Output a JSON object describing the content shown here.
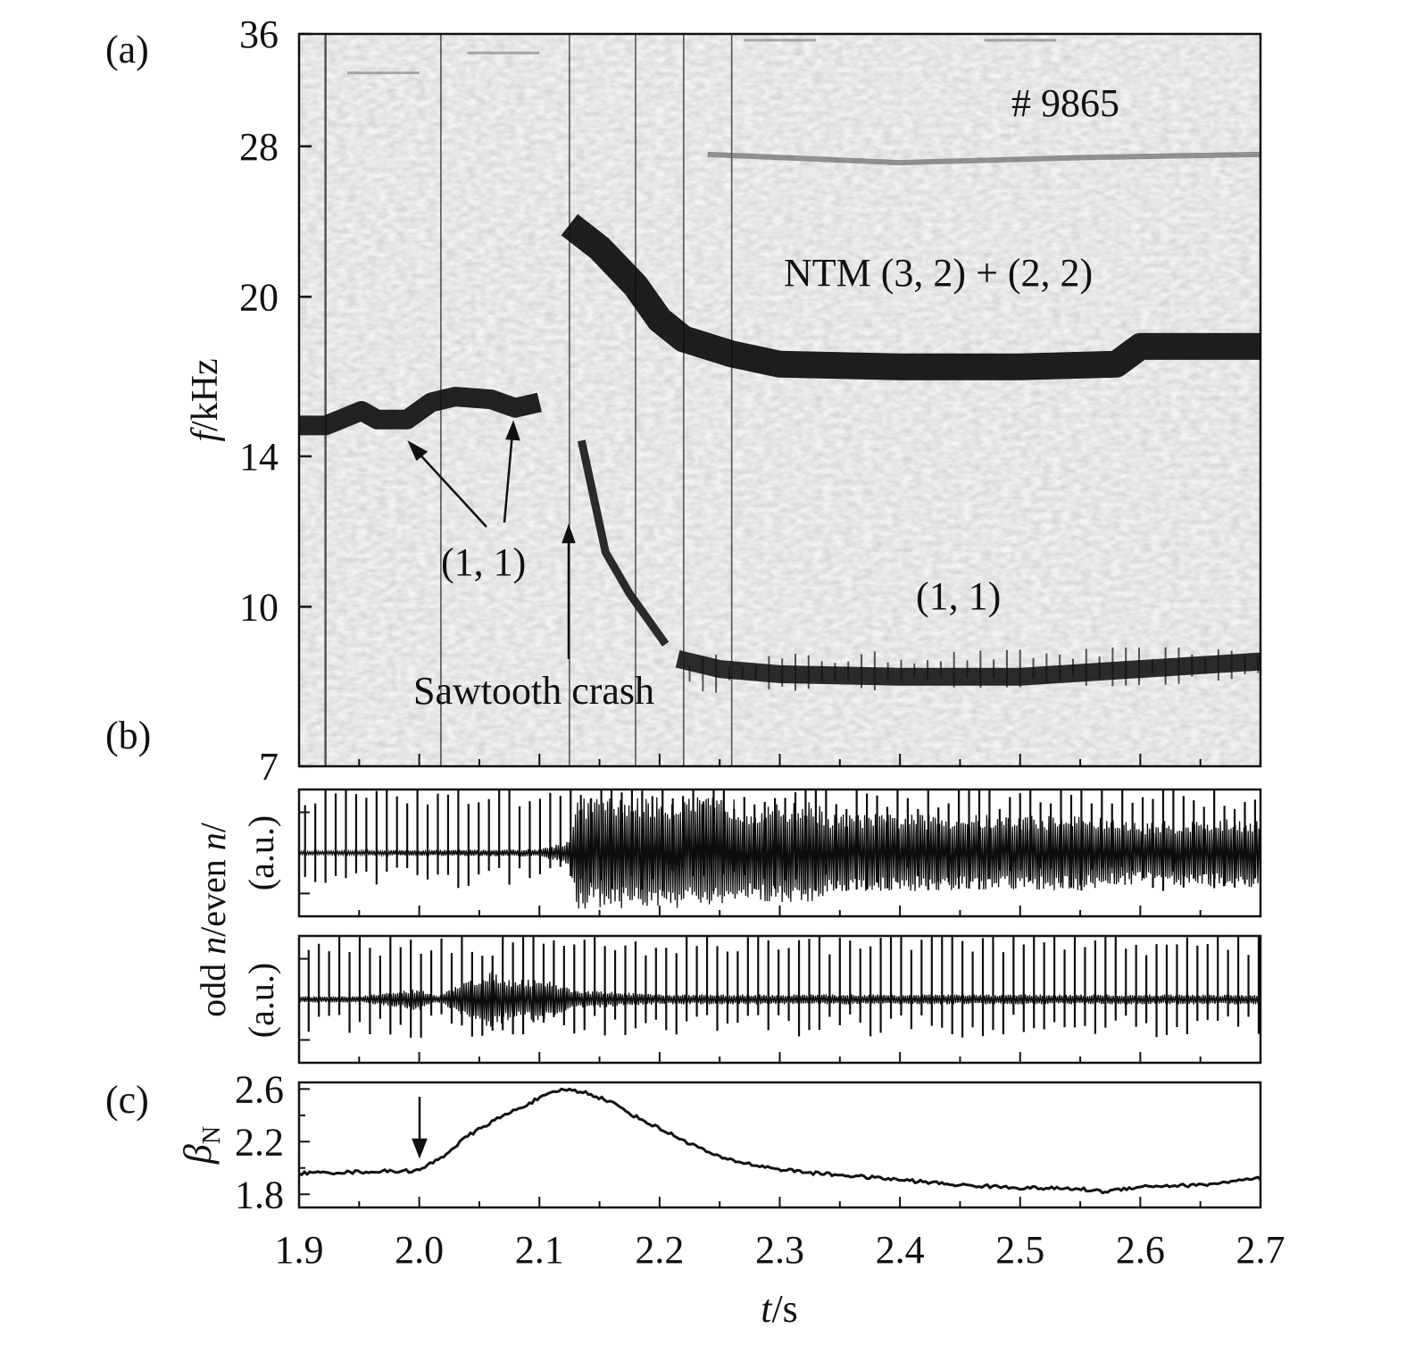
{
  "figure": {
    "panel_labels": [
      "(a)",
      "(b)",
      "(c)"
    ],
    "x_axis_label_italic": "t",
    "x_axis_label_unit": "/s",
    "x_ticks": [
      "1.9",
      "2.0",
      "2.1",
      "2.2",
      "2.3",
      "2.4",
      "2.5",
      "2.6",
      "2.7"
    ]
  },
  "chart_data": [
    {
      "type": "heatmap",
      "panel": "(a)",
      "ylabel_italic": "f",
      "ylabel_unit": "/kHz",
      "yscale": "log",
      "xlim": [
        1.9,
        2.7
      ],
      "ylim": [
        7,
        36
      ],
      "y_ticks": [
        "7",
        "10",
        "14",
        "20",
        "28",
        "36"
      ],
      "annotations": {
        "shot": "# 9865",
        "ntm": "NTM (3, 2) + (2, 2)",
        "mode_11_left": "(1, 1)",
        "mode_11_right": "(1, 1)",
        "sawtooth": "Sawtooth crash"
      },
      "mode_tracks": [
        {
          "name": "(1, 1) early",
          "points": [
            [
              1.9,
              15.0
            ],
            [
              1.922,
              15.0
            ],
            [
              1.952,
              15.5
            ],
            [
              1.965,
              15.2
            ],
            [
              1.99,
              15.2
            ],
            [
              2.01,
              15.8
            ],
            [
              2.03,
              16.0
            ],
            [
              2.06,
              15.9
            ],
            [
              2.08,
              15.6
            ],
            [
              2.1,
              15.8
            ]
          ]
        },
        {
          "name": "NTM (3, 2) + (2, 2)",
          "points": [
            [
              2.125,
              23.5
            ],
            [
              2.15,
              22.3
            ],
            [
              2.18,
              20.5
            ],
            [
              2.2,
              19.0
            ],
            [
              2.22,
              18.2
            ],
            [
              2.26,
              17.6
            ],
            [
              2.3,
              17.2
            ],
            [
              2.4,
              17.1
            ],
            [
              2.5,
              17.1
            ],
            [
              2.58,
              17.2
            ],
            [
              2.6,
              17.9
            ],
            [
              2.7,
              17.9
            ]
          ]
        },
        {
          "name": "(1, 1) late",
          "points": [
            [
              2.215,
              8.9
            ],
            [
              2.25,
              8.7
            ],
            [
              2.3,
              8.6
            ],
            [
              2.4,
              8.55
            ],
            [
              2.5,
              8.55
            ],
            [
              2.6,
              8.7
            ],
            [
              2.7,
              8.85
            ]
          ]
        },
        {
          "name": "(1, 1) descending",
          "points": [
            [
              2.135,
              14.5
            ],
            [
              2.155,
              11.3
            ],
            [
              2.175,
              10.3
            ],
            [
              2.205,
              9.2
            ]
          ]
        },
        {
          "name": "upper harmonic",
          "points": [
            [
              2.24,
              27.5
            ],
            [
              2.4,
              27.0
            ],
            [
              2.55,
              27.3
            ],
            [
              2.7,
              27.5
            ]
          ]
        }
      ]
    },
    {
      "type": "line",
      "panel": "(b) upper",
      "ylabel_italic_parts": [
        "even ",
        "n",
        "/"
      ],
      "ylabel_unit": "(a.u.)",
      "xlim": [
        1.9,
        2.7
      ],
      "envelope": {
        "x": [
          1.9,
          2.1,
          2.125,
          2.13,
          2.26,
          2.27,
          2.33,
          2.34,
          2.55,
          2.6,
          2.61,
          2.7
        ],
        "amplitude": [
          0.03,
          0.06,
          0.2,
          0.88,
          0.88,
          0.75,
          0.82,
          0.62,
          0.6,
          0.48,
          0.5,
          0.55
        ]
      },
      "spike_period_s": 0.0085
    },
    {
      "type": "line",
      "panel": "(b) lower",
      "ylabel_italic_parts": [
        "odd ",
        "n",
        "/"
      ],
      "ylabel_unit": "(a.u.)",
      "xlim": [
        1.9,
        2.7
      ],
      "envelope": {
        "x": [
          1.9,
          1.95,
          1.98,
          2.0,
          2.015,
          2.04,
          2.06,
          2.08,
          2.1,
          2.13,
          2.2,
          2.7
        ],
        "amplitude": [
          0.05,
          0.05,
          0.12,
          0.18,
          0.05,
          0.3,
          0.45,
          0.3,
          0.35,
          0.15,
          0.08,
          0.08
        ]
      },
      "spike_period_s": 0.0085
    },
    {
      "type": "line",
      "panel": "(c)",
      "ylabel_symbol": "β",
      "ylabel_subscript": "N",
      "xlim": [
        1.9,
        2.7
      ],
      "ylim": [
        1.7,
        2.65
      ],
      "y_ticks": [
        "1.8",
        "2.2",
        "2.6"
      ],
      "arrow_at_x": 2.0,
      "series": [
        {
          "x": [
            1.9,
            1.95,
            2.0,
            2.02,
            2.04,
            2.06,
            2.08,
            2.1,
            2.12,
            2.14,
            2.16,
            2.18,
            2.2,
            2.22,
            2.25,
            2.28,
            2.3,
            2.33,
            2.36,
            2.4,
            2.45,
            2.5,
            2.55,
            2.57,
            2.6,
            2.65,
            2.7
          ],
          "y": [
            1.96,
            1.97,
            1.98,
            2.09,
            2.24,
            2.35,
            2.44,
            2.53,
            2.6,
            2.57,
            2.5,
            2.39,
            2.3,
            2.21,
            2.08,
            2.02,
            1.99,
            1.96,
            1.94,
            1.91,
            1.87,
            1.85,
            1.84,
            1.82,
            1.86,
            1.87,
            1.92
          ]
        }
      ]
    }
  ]
}
